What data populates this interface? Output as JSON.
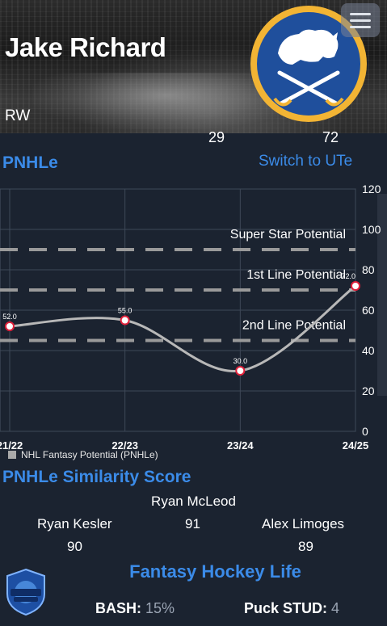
{
  "player": {
    "name": "Jake Richard",
    "position": "RW"
  },
  "header_stats": {
    "left_value": "29",
    "right_value": "72"
  },
  "team_logo_icon": "buffalo-sabres-logo",
  "pnhle": {
    "title": "PNHLe",
    "switch_label": "Switch to UTe"
  },
  "chart_data": {
    "type": "line",
    "categories": [
      "21/22",
      "22/23",
      "23/24",
      "24/25"
    ],
    "series": [
      {
        "name": "NHL Fantasy Potential (PNHLe)",
        "values": [
          52.0,
          55.0,
          30.0,
          72.0
        ],
        "labels": [
          "52.0",
          "55.0",
          "30.0",
          "72.0"
        ]
      }
    ],
    "y_ticks": [
      "0",
      "20",
      "40",
      "60",
      "80",
      "100",
      "120"
    ],
    "ylim": [
      0,
      120
    ],
    "reference_lines": [
      {
        "label": "Super Star Potential",
        "value": 90
      },
      {
        "label": "1st Line Potential",
        "value": 70
      },
      {
        "label": "2nd Line Potential",
        "value": 45
      }
    ],
    "legend_position": "bottom-left",
    "grid": true,
    "colors": {
      "line": "#b8b8b8",
      "marker_fill": "#ffffff",
      "marker_stroke": "#e0203a",
      "ref_line": "#9a9a9a"
    }
  },
  "similarity": {
    "title": "PNHLe Similarity Score",
    "top_name": "Ryan McLeod",
    "top_score": "91",
    "left_name": "Ryan Kesler",
    "left_score": "90",
    "right_name": "Alex Limoges",
    "right_score": "89"
  },
  "footer": {
    "brand": "Fantasy Hockey Life",
    "bash_label": "BASH:",
    "bash_value": "15%",
    "stud_label": "Puck STUD:",
    "stud_value": "4"
  },
  "colors": {
    "accent": "#3b8be8",
    "background": "#1b2330"
  }
}
